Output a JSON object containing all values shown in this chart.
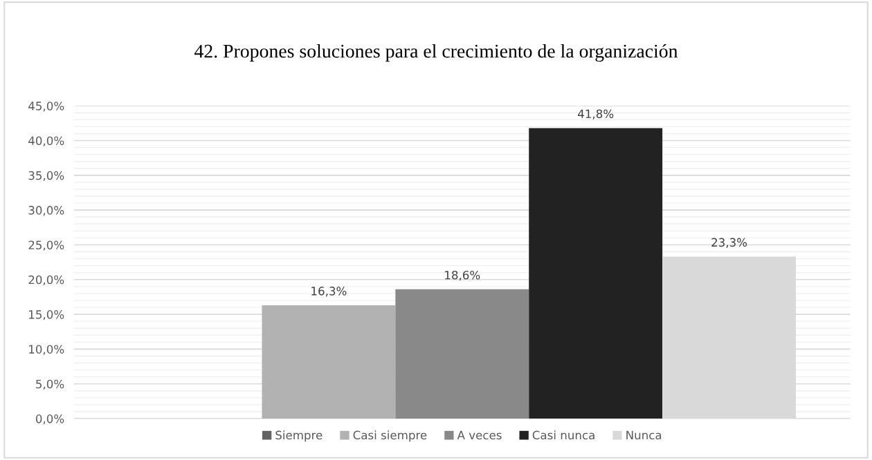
{
  "chart_data": {
    "type": "bar",
    "title": "42. Propones soluciones para el crecimiento de la organización",
    "categories": [
      null
    ],
    "series": [
      {
        "name": "Siempre",
        "color": "#636363",
        "values": [
          0
        ],
        "value_labels": [
          null
        ]
      },
      {
        "name": "Casi siempre",
        "color": "#b2b2b2",
        "values": [
          16.3
        ],
        "value_labels": [
          "16,3%"
        ]
      },
      {
        "name": "A veces",
        "color": "#898989",
        "values": [
          18.6
        ],
        "value_labels": [
          "18,6%"
        ]
      },
      {
        "name": "Casi nunca",
        "color": "#222222",
        "values": [
          41.8
        ],
        "value_labels": [
          "41,8%"
        ]
      },
      {
        "name": "Nunca",
        "color": "#d9d9d9",
        "values": [
          23.3
        ],
        "value_labels": [
          "23,3%"
        ]
      }
    ],
    "ylim": [
      0,
      45
    ],
    "yticks": [
      {
        "value": 0,
        "label": "0,0%"
      },
      {
        "value": 5,
        "label": "5,0%"
      },
      {
        "value": 10,
        "label": "10,0%"
      },
      {
        "value": 15,
        "label": "15,0%"
      },
      {
        "value": 20,
        "label": "20,0%"
      },
      {
        "value": 25,
        "label": "25,0%"
      },
      {
        "value": 30,
        "label": "30,0%"
      },
      {
        "value": 35,
        "label": "35,0%"
      },
      {
        "value": 40,
        "label": "40,0%"
      },
      {
        "value": 45,
        "label": "45,0%"
      }
    ],
    "grid": "y",
    "legend": "bottom"
  }
}
